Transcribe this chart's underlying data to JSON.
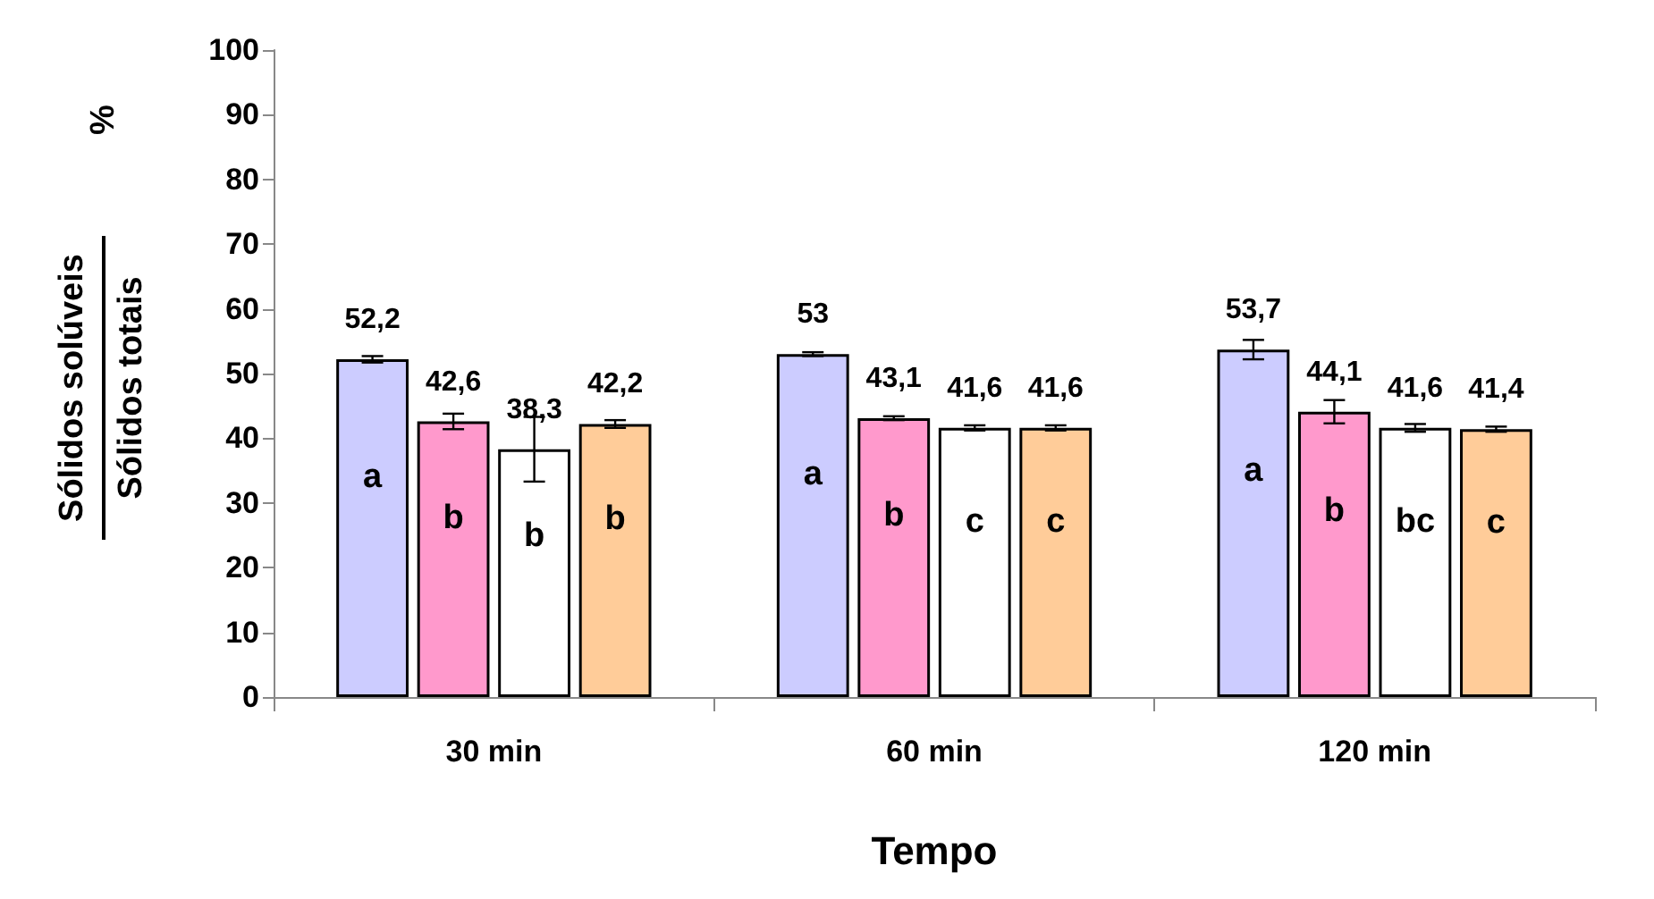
{
  "chart_data": {
    "type": "bar",
    "xlabel": "Tempo",
    "ylabel": "Sólidos solúveis\nSólidos totais\n%",
    "categories": [
      "30 min",
      "60 min",
      "120 min"
    ],
    "series": [
      {
        "color": "#ccccff",
        "values": [
          52.2,
          53,
          53.7
        ],
        "errors": [
          0.5,
          0.3,
          1.5
        ],
        "value_labels": [
          "52,2",
          "53",
          "53,7"
        ]
      },
      {
        "color": "#ff99cc",
        "values": [
          42.6,
          43.1,
          44.1
        ],
        "errors": [
          1.2,
          0.3,
          1.8
        ],
        "value_labels": [
          "42,6",
          "43,1",
          "44,1"
        ]
      },
      {
        "color": "#ffffff",
        "values": [
          38.3,
          41.6,
          41.6
        ],
        "errors": [
          5,
          0.4,
          0.6
        ],
        "value_labels": [
          "38,3",
          "41,6",
          "41,6"
        ]
      },
      {
        "color": "#ffcc99",
        "values": [
          42.2,
          41.6,
          41.4
        ],
        "errors": [
          0.6,
          0.4,
          0.4
        ],
        "value_labels": [
          "42,2",
          "41,6",
          "41,4"
        ]
      }
    ],
    "ylim": [
      0,
      100
    ],
    "yticks": [
      0,
      10,
      20,
      30,
      40,
      50,
      60,
      70,
      80,
      90,
      100
    ],
    "grid": false,
    "annotations": [
      "a",
      "b",
      "b",
      "b",
      "a",
      "b",
      "c",
      "c",
      "a",
      "b",
      "bc",
      "c"
    ]
  }
}
